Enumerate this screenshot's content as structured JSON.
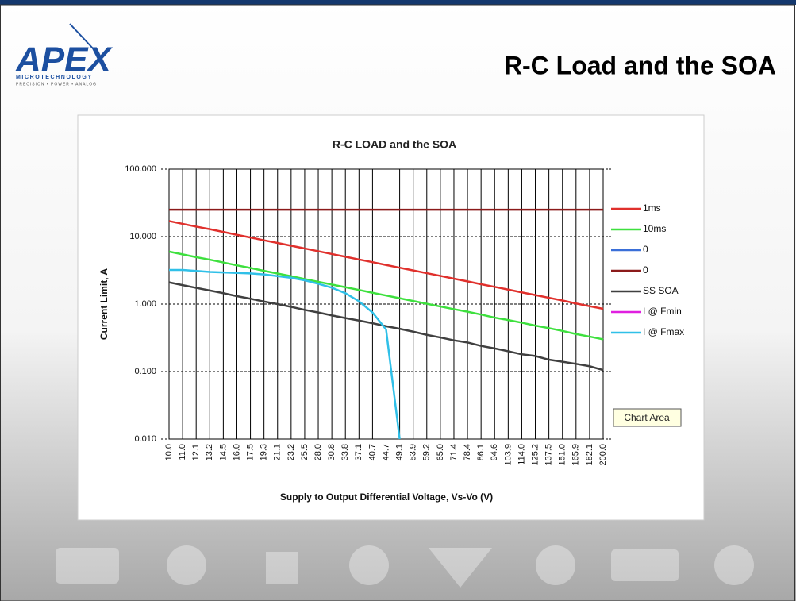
{
  "slide": {
    "title": "R-C Load and the SOA",
    "logo": {
      "name": "APEX",
      "sub": "MICROTECHNOLOGY",
      "tagline": "PRECISION • POWER • ANALOG"
    },
    "tooltip": "Chart Area"
  },
  "chart_data": {
    "type": "line",
    "title": "R-C LOAD and the SOA",
    "x_label": "Supply to Output Differential Voltage, Vs-Vo (V)",
    "y_label": "Current Limit, A",
    "log_y": true,
    "grid": true,
    "legend": "right",
    "categories": [
      "10.0",
      "11.0",
      "12.1",
      "13.2",
      "14.5",
      "16.0",
      "17.5",
      "19.3",
      "21.1",
      "23.2",
      "25.5",
      "28.0",
      "30.8",
      "33.8",
      "37.1",
      "40.7",
      "44.7",
      "49.1",
      "53.9",
      "59.2",
      "65.0",
      "71.4",
      "78.4",
      "86.1",
      "94.6",
      "103.9",
      "114.0",
      "125.2",
      "137.5",
      "151.0",
      "165.9",
      "182.1",
      "200.0"
    ],
    "ylim": [
      0.01,
      100
    ],
    "yticks": [
      {
        "value": 0.01,
        "label": "0.010"
      },
      {
        "value": 0.1,
        "label": "0.100"
      },
      {
        "value": 1,
        "label": "1.000"
      },
      {
        "value": 10,
        "label": "10.000"
      },
      {
        "value": 100,
        "label": "100.000"
      }
    ],
    "series": [
      {
        "name": "1ms",
        "color": "#e0302c",
        "values": [
          17,
          15.45,
          14.05,
          12.88,
          11.72,
          10.63,
          9.71,
          8.81,
          8.06,
          7.33,
          6.67,
          6.07,
          5.52,
          5.03,
          4.58,
          4.18,
          3.8,
          3.46,
          3.15,
          2.87,
          2.62,
          2.38,
          2.17,
          1.97,
          1.8,
          1.64,
          1.49,
          1.36,
          1.24,
          1.13,
          1.02,
          0.93,
          0.85
        ]
      },
      {
        "name": "10ms",
        "color": "#3ee03e",
        "values": [
          6,
          5.45,
          4.96,
          4.55,
          4.14,
          3.75,
          3.43,
          3.11,
          2.84,
          2.59,
          2.35,
          2.14,
          1.95,
          1.78,
          1.62,
          1.47,
          1.34,
          1.22,
          1.11,
          1.01,
          0.92,
          0.84,
          0.77,
          0.7,
          0.63,
          0.58,
          0.53,
          0.48,
          0.44,
          0.4,
          0.36,
          0.33,
          0.3
        ]
      },
      {
        "name": "0",
        "color": "#3a6fd8",
        "values": [
          null,
          null,
          null,
          null,
          null,
          null,
          null,
          null,
          null,
          null,
          null,
          null,
          null,
          null,
          null,
          null,
          null,
          null,
          null,
          null,
          null,
          null,
          null,
          null,
          null,
          null,
          null,
          null,
          null,
          null,
          null,
          null,
          null
        ]
      },
      {
        "name": "0",
        "color": "#8b1a1a",
        "values": [
          25,
          25,
          25,
          25,
          25,
          25,
          25,
          25,
          25,
          25,
          25,
          25,
          25,
          25,
          25,
          25,
          25,
          25,
          25,
          25,
          25,
          25,
          25,
          25,
          25,
          25,
          25,
          25,
          25,
          25,
          25,
          25,
          25
        ]
      },
      {
        "name": "SS SOA",
        "color": "#404040",
        "values": [
          2.1,
          1.91,
          1.74,
          1.59,
          1.45,
          1.31,
          1.2,
          1.09,
          1.0,
          0.91,
          0.82,
          0.75,
          0.68,
          0.62,
          0.57,
          0.52,
          0.47,
          0.43,
          0.39,
          0.35,
          0.32,
          0.29,
          0.27,
          0.24,
          0.22,
          0.2,
          0.18,
          0.17,
          0.15,
          0.14,
          0.13,
          0.12,
          0.105
        ]
      },
      {
        "name": "I @ Fmin",
        "color": "#e020e0",
        "values": [
          null,
          null,
          null,
          null,
          null,
          null,
          null,
          null,
          null,
          null,
          null,
          null,
          null,
          null,
          null,
          null,
          null,
          null,
          null,
          null,
          null,
          null,
          null,
          null,
          null,
          null,
          null,
          null,
          null,
          null,
          null,
          null,
          null
        ]
      },
      {
        "name": "I @ Fmax",
        "color": "#30c0e8",
        "values": [
          3.2,
          3.2,
          3.1,
          3.0,
          2.95,
          2.9,
          2.85,
          2.75,
          2.6,
          2.45,
          2.25,
          2.0,
          1.75,
          1.45,
          1.1,
          0.75,
          0.42,
          0.01,
          null,
          null,
          null,
          null,
          null,
          null,
          null,
          null,
          null,
          null,
          null,
          null,
          null,
          null,
          null
        ]
      }
    ]
  }
}
